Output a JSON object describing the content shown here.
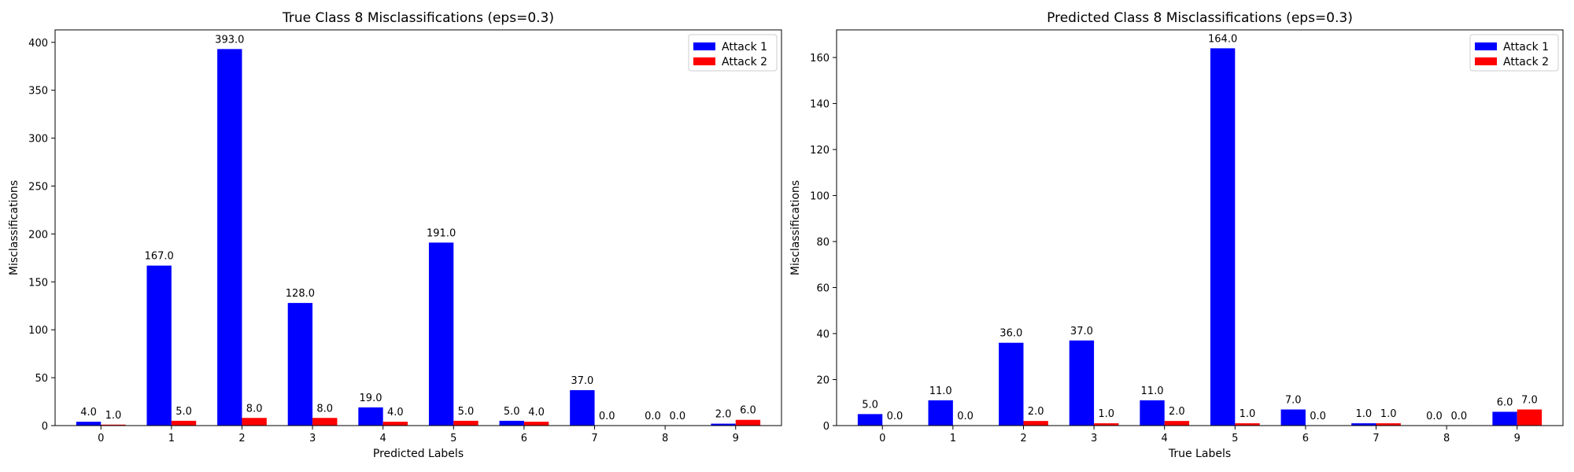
{
  "colors": {
    "attack1": "#0000ff",
    "attack2": "#ff0000"
  },
  "chart_data": [
    {
      "type": "bar",
      "title": "True Class 8 Misclassifications (eps=0.3)",
      "xlabel": "Predicted Labels",
      "ylabel": "Misclassifications",
      "categories": [
        "0",
        "1",
        "2",
        "3",
        "4",
        "5",
        "6",
        "7",
        "8",
        "9"
      ],
      "ylim": [
        0,
        413
      ],
      "yticks": [
        0,
        50,
        100,
        150,
        200,
        250,
        300,
        350,
        400
      ],
      "legend_position": "top-right",
      "series": [
        {
          "name": "Attack 1",
          "color": "#0000ff",
          "values": [
            4.0,
            167.0,
            393.0,
            128.0,
            19.0,
            191.0,
            5.0,
            37.0,
            0.0,
            2.0
          ],
          "labels": [
            "4.0",
            "167.0",
            "393.0",
            "128.0",
            "19.0",
            "191.0",
            "5.0",
            "37.0",
            "0.0",
            "2.0"
          ]
        },
        {
          "name": "Attack 2",
          "color": "#ff0000",
          "values": [
            1.0,
            5.0,
            8.0,
            8.0,
            4.0,
            5.0,
            4.0,
            0.0,
            0.0,
            6.0
          ],
          "labels": [
            "1.0",
            "5.0",
            "8.0",
            "8.0",
            "4.0",
            "5.0",
            "4.0",
            "0.0",
            "0.0",
            "6.0"
          ]
        }
      ]
    },
    {
      "type": "bar",
      "title": "Predicted Class 8 Misclassifications (eps=0.3)",
      "xlabel": "True Labels",
      "ylabel": "Misclassifications",
      "categories": [
        "0",
        "1",
        "2",
        "3",
        "4",
        "5",
        "6",
        "7",
        "8",
        "9"
      ],
      "ylim": [
        0,
        172
      ],
      "yticks": [
        0,
        20,
        40,
        60,
        80,
        100,
        120,
        140,
        160
      ],
      "legend_position": "top-right",
      "series": [
        {
          "name": "Attack 1",
          "color": "#0000ff",
          "values": [
            5.0,
            11.0,
            36.0,
            37.0,
            11.0,
            164.0,
            7.0,
            1.0,
            0.0,
            6.0
          ],
          "labels": [
            "5.0",
            "11.0",
            "36.0",
            "37.0",
            "11.0",
            "164.0",
            "7.0",
            "1.0",
            "0.0",
            "6.0"
          ]
        },
        {
          "name": "Attack 2",
          "color": "#ff0000",
          "values": [
            0.0,
            0.0,
            2.0,
            1.0,
            2.0,
            1.0,
            0.0,
            1.0,
            0.0,
            7.0
          ],
          "labels": [
            "0.0",
            "0.0",
            "2.0",
            "1.0",
            "2.0",
            "1.0",
            "0.0",
            "1.0",
            "0.0",
            "7.0"
          ]
        }
      ]
    }
  ]
}
